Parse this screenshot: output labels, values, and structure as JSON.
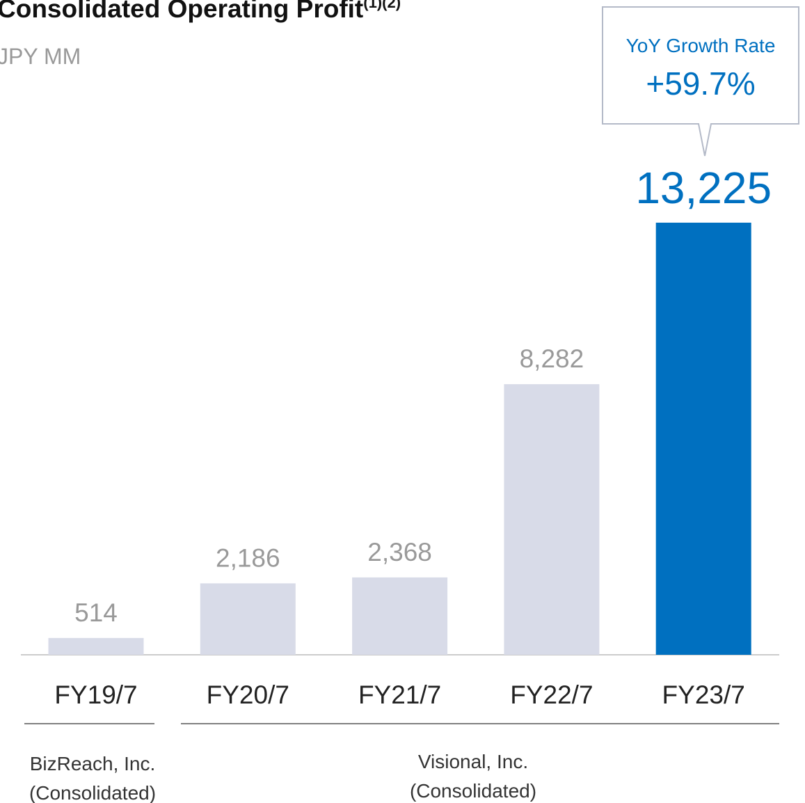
{
  "chart_data": {
    "type": "bar",
    "title": "Consolidated Operating Profit",
    "title_superscript": "(1)(2)",
    "subtitle": "JPY MM",
    "categories": [
      "FY19/7",
      "FY20/7",
      "FY21/7",
      "FY22/7",
      "FY23/7"
    ],
    "values": [
      514,
      2186,
      2368,
      8282,
      13225
    ],
    "value_labels": [
      "514",
      "2,186",
      "2,368",
      "8,282",
      "13,225"
    ],
    "colors": [
      "#d8dbe8",
      "#d8dbe8",
      "#d8dbe8",
      "#d8dbe8",
      "#0070c0"
    ],
    "callout": {
      "label": "YoY Growth Rate",
      "value": "+59.7%"
    },
    "groups": [
      {
        "name": "BizReach, Inc.",
        "note": "(Consolidated)"
      },
      {
        "name": "Visional, Inc.",
        "note": "(Consolidated)"
      }
    ]
  }
}
